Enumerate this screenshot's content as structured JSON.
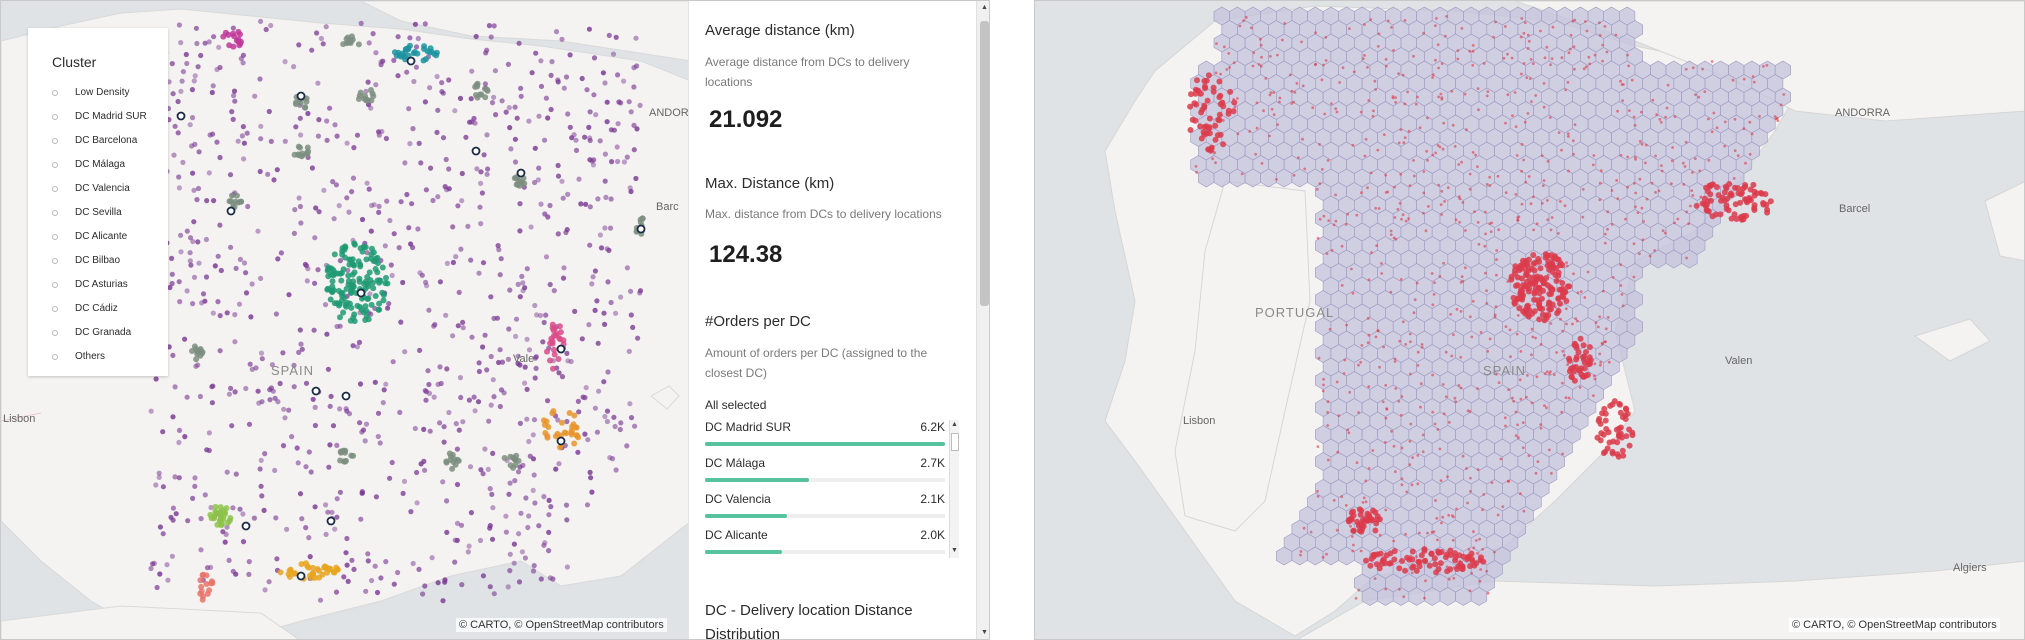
{
  "left_map": {
    "legend": {
      "title": "Cluster",
      "items": [
        "Low Density",
        "DC Madrid SUR",
        "DC Barcelona",
        "DC Málaga",
        "DC Valencia",
        "DC Sevilla",
        "DC Alicante",
        "DC Bilbao",
        "DC Asturias",
        "DC Cádiz",
        "DC Granada",
        "Others"
      ]
    },
    "labels": {
      "lisbon": "Lisbon",
      "spain": "SPAIN",
      "andorra": "ANDOR",
      "barcelona": "Barc",
      "valencia": "Vale"
    },
    "attribution": {
      "prefix": "© CARTO, © ",
      "osm": "OpenStreetMap",
      "suffix": " contributors"
    },
    "colors": {
      "low_density": "#7b3a94",
      "madrid": "#1f9a73",
      "cluster_gray": "#7d8e80",
      "malaga": "#e8a41f",
      "sevilla": "#8cc24a",
      "barcelona": "#1f93a0",
      "valencia": "#d94b8a",
      "alicante": "#e8952a",
      "cadiz": "#e8736a"
    }
  },
  "sidebar": {
    "avg": {
      "title": "Average distance (km)",
      "desc": "Average distance from DCs to delivery locations",
      "value": "21.092"
    },
    "max": {
      "title": "Max. Distance (km)",
      "desc": "Max. distance from DCs to delivery locations",
      "value": "124.38"
    },
    "orders": {
      "title": "#Orders per DC",
      "desc": "Amount of orders per DC (assigned to the closest DC)",
      "selection": "All selected",
      "bars": [
        {
          "label": "DC Madrid SUR",
          "value": "6.2K",
          "fraction": 1.0
        },
        {
          "label": "DC Málaga",
          "value": "2.7K",
          "fraction": 0.435
        },
        {
          "label": "DC Valencia",
          "value": "2.1K",
          "fraction": 0.34
        },
        {
          "label": "DC Alicante",
          "value": "2.0K",
          "fraction": 0.32
        }
      ]
    },
    "dist": {
      "title": "DC - Delivery location Distance Distribution"
    }
  },
  "right_map": {
    "labels": {
      "portugal": "PORTUGAL",
      "lisbon": "Lisbon",
      "spain": "SPAIN",
      "andorra": "ANDORRA",
      "barcelona": "Barcel",
      "valencia": "Valen",
      "algiers": "Algiers"
    },
    "attribution": {
      "prefix": "© CARTO, © ",
      "osm": "OpenStreetMap",
      "suffix": " contributors"
    },
    "colors": {
      "hex_fill": "#c4c1db",
      "hex_stroke": "#9d99c2",
      "points": "#dc3b4b"
    }
  }
}
